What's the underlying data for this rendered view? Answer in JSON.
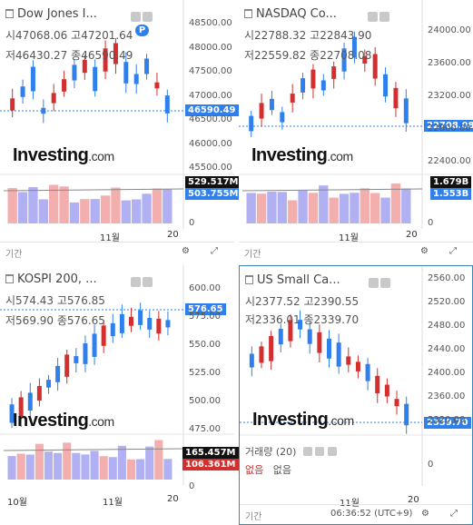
{
  "panels": [
    {
      "name": "Dow Jones I...",
      "open_label": "시",
      "open": "47068.06",
      "high_label": "고",
      "high": "47201.64",
      "low_label": "저",
      "low": "46430.27",
      "close_label": "종",
      "close": "46590.49",
      "price_tag": "46590.49",
      "yticks": [
        "48500.00",
        "48000.00",
        "47500.00",
        "47000.00",
        "46500.00",
        "46000.00",
        "45500.00"
      ],
      "vol_tags": [
        "529.517M",
        "503.755M"
      ],
      "vol_zero": "0",
      "xlabels": [
        "11월",
        "20"
      ],
      "footer": "기간",
      "badge": "P"
    },
    {
      "name": "NASDAQ Co...",
      "open_label": "시",
      "open": "22788.32",
      "high_label": "고",
      "high": "22843.90",
      "low_label": "저",
      "low": "22559.82",
      "close_label": "종",
      "close": "22708.08",
      "price_tag": "22708.08",
      "yticks": [
        "24000.00",
        "23600.00",
        "23200.00",
        "22800.00",
        "22400.00"
      ],
      "vol_tags": [
        "1.679B",
        "1.553B"
      ],
      "vol_zero": "0",
      "xlabels": [
        "11월",
        "20"
      ],
      "footer": "기간"
    },
    {
      "name": "KOSPI 200, ...",
      "open_label": "시",
      "open": "574.43",
      "high_label": "고",
      "high": "576.85",
      "low_label": "저",
      "low": "569.90",
      "close_label": "종",
      "close": "576.65",
      "price_tag": "576.65",
      "yticks": [
        "600.00",
        "575.00",
        "550.00",
        "525.00",
        "500.00",
        "475.00"
      ],
      "vol_tags": [
        "165.457M",
        "106.361M"
      ],
      "vol_zero": "0",
      "xlabels": [
        "10월",
        "11월",
        "20"
      ],
      "footer": "기간"
    },
    {
      "name": "US Small Ca...",
      "open_label": "시",
      "open": "2377.52",
      "high_label": "고",
      "high": "2390.55",
      "low_label": "저",
      "low": "2336.01",
      "close_label": "종",
      "close": "2339.70",
      "price_tag": "2339.70",
      "yticks": [
        "2560.00",
        "2520.00",
        "2480.00",
        "2440.00",
        "2400.00",
        "2360.00",
        "2320.00"
      ],
      "vol_title": "거래량 (20)",
      "vol_none_1": "없음",
      "vol_none_2": "없음",
      "vol_zero": "0",
      "xlabels": [
        "11월",
        "20"
      ],
      "footer": "기간",
      "time": "06:36:52 (UTC+9)"
    }
  ],
  "logo": {
    "main": "Investing",
    "suffix": ".com"
  },
  "colors": {
    "up": "#26a69a",
    "down": "#d32f2f",
    "blue": "#2f80ed",
    "red": "#d32f2f",
    "vol_up": "#a9a7f2",
    "vol_down": "#f2a5a5"
  }
}
